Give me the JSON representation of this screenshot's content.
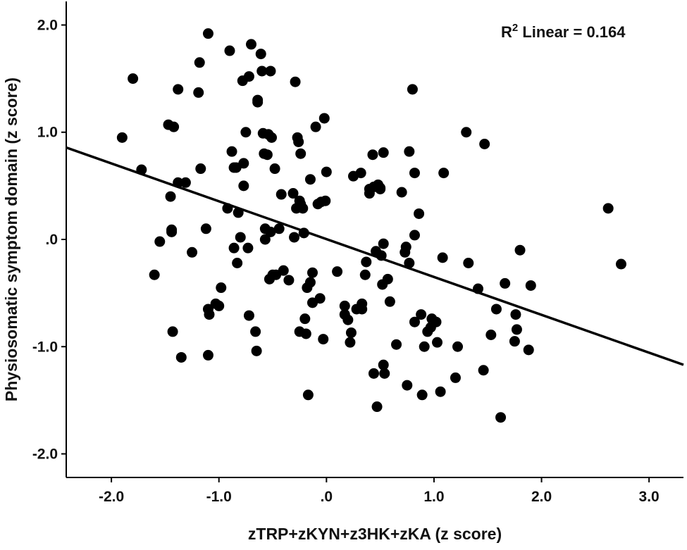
{
  "chart_data": {
    "type": "scatter",
    "xlabel": "zTRP+zKYN+z3HK+zKA (z score)",
    "ylabel": "Physiosomatic symptom domain (z score)",
    "xlim": [
      -2.42,
      3.32
    ],
    "ylim": [
      -2.22,
      2.22
    ],
    "x_ticks": [
      -2.0,
      -1.0,
      0.0,
      1.0,
      2.0,
      3.0
    ],
    "x_tick_labels": [
      "-2.0",
      "-1.0",
      ".0",
      "1.0",
      "2.0",
      "3.0"
    ],
    "y_ticks": [
      -2.0,
      -1.0,
      0.0,
      1.0,
      2.0
    ],
    "y_tick_labels": [
      "-2.0",
      "-1.0",
      ".0",
      "1.0",
      "2.0"
    ],
    "grid": false,
    "legend": "none",
    "annotation": {
      "base": "R",
      "superscript": "2",
      "text": " Linear = 0.164",
      "position": "top-right"
    },
    "fit_line": {
      "kind": "linear",
      "x": [
        -2.42,
        3.32
      ],
      "y": [
        0.857,
        -1.169
      ]
    },
    "colors": {
      "points": "#000000",
      "fit_line": "#000000",
      "axes": "#000000",
      "background": "#ffffff"
    },
    "points": [
      [
        -1.9,
        0.95
      ],
      [
        -1.8,
        1.5
      ],
      [
        -1.72,
        0.65
      ],
      [
        -1.6,
        -0.33
      ],
      [
        -1.55,
        -0.02
      ],
      [
        -1.47,
        1.07
      ],
      [
        -1.42,
        1.05
      ],
      [
        -1.45,
        0.4
      ],
      [
        -1.44,
        0.07
      ],
      [
        -1.44,
        0.09
      ],
      [
        -1.43,
        -0.86
      ],
      [
        -1.38,
        1.4
      ],
      [
        -1.38,
        0.53
      ],
      [
        -1.35,
        -1.1
      ],
      [
        -1.31,
        0.53
      ],
      [
        -1.19,
        1.37
      ],
      [
        -1.18,
        1.65
      ],
      [
        -1.17,
        0.66
      ],
      [
        -1.25,
        -0.12
      ],
      [
        -1.1,
        1.92
      ],
      [
        -1.12,
        0.1
      ],
      [
        -1.1,
        -0.65
      ],
      [
        -1.09,
        -0.7
      ],
      [
        -1.1,
        -1.08
      ],
      [
        -1.03,
        -0.6
      ],
      [
        -1.0,
        -0.62
      ],
      [
        -0.98,
        -0.45
      ],
      [
        -0.92,
        0.29
      ],
      [
        -0.9,
        1.76
      ],
      [
        -0.88,
        0.82
      ],
      [
        -0.86,
        0.67
      ],
      [
        -0.86,
        -0.08
      ],
      [
        -0.84,
        0.67
      ],
      [
        -0.83,
        -0.22
      ],
      [
        -0.82,
        0.25
      ],
      [
        -0.8,
        0.02
      ],
      [
        -0.78,
        1.48
      ],
      [
        -0.77,
        0.5
      ],
      [
        -0.77,
        0.71
      ],
      [
        -0.75,
        1.0
      ],
      [
        -0.73,
        -0.08
      ],
      [
        -0.72,
        -0.71
      ],
      [
        -0.72,
        1.52
      ],
      [
        -0.7,
        1.82
      ],
      [
        -0.66,
        -0.86
      ],
      [
        -0.65,
        -1.04
      ],
      [
        -0.64,
        1.3
      ],
      [
        -0.64,
        1.28
      ],
      [
        -0.61,
        1.73
      ],
      [
        -0.6,
        1.57
      ],
      [
        -0.59,
        0.99
      ],
      [
        -0.58,
        0.8
      ],
      [
        -0.57,
        0.1
      ],
      [
        -0.57,
        0.0
      ],
      [
        -0.55,
        0.79
      ],
      [
        -0.54,
        0.98
      ],
      [
        -0.53,
        -0.37
      ],
      [
        -0.52,
        1.57
      ],
      [
        -0.52,
        0.07
      ],
      [
        -0.51,
        0.95
      ],
      [
        -0.5,
        -0.33
      ],
      [
        -0.48,
        0.66
      ],
      [
        -0.47,
        -0.33
      ],
      [
        -0.44,
        0.1
      ],
      [
        -0.42,
        0.42
      ],
      [
        -0.4,
        -0.29
      ],
      [
        -0.35,
        -0.38
      ],
      [
        -0.31,
        0.43
      ],
      [
        -0.3,
        0.02
      ],
      [
        -0.29,
        1.47
      ],
      [
        -0.28,
        0.29
      ],
      [
        -0.27,
        0.95
      ],
      [
        -0.26,
        0.91
      ],
      [
        -0.25,
        0.36
      ],
      [
        -0.25,
        -0.86
      ],
      [
        -0.24,
        0.8
      ],
      [
        -0.24,
        0.33
      ],
      [
        -0.22,
        0.29
      ],
      [
        -0.21,
        0.06
      ],
      [
        -0.2,
        -0.74
      ],
      [
        -0.19,
        -0.88
      ],
      [
        -0.18,
        -0.45
      ],
      [
        -0.17,
        -1.45
      ],
      [
        -0.15,
        0.56
      ],
      [
        -0.15,
        -0.4
      ],
      [
        -0.13,
        -0.59
      ],
      [
        -0.13,
        -0.31
      ],
      [
        -0.1,
        1.05
      ],
      [
        -0.08,
        0.33
      ],
      [
        -0.06,
        -0.55
      ],
      [
        -0.05,
        0.35
      ],
      [
        -0.03,
        -0.93
      ],
      [
        -0.01,
        0.36
      ],
      [
        -0.02,
        1.13
      ],
      [
        0.0,
        0.63
      ],
      [
        0.1,
        -0.3
      ],
      [
        0.17,
        -0.62
      ],
      [
        0.17,
        -0.7
      ],
      [
        0.2,
        -0.75
      ],
      [
        0.22,
        -0.96
      ],
      [
        0.23,
        -0.87
      ],
      [
        0.25,
        0.59
      ],
      [
        0.28,
        -0.65
      ],
      [
        0.32,
        0.62
      ],
      [
        0.33,
        -0.65
      ],
      [
        0.33,
        -0.6
      ],
      [
        0.36,
        -0.33
      ],
      [
        0.37,
        -0.21
      ],
      [
        0.4,
        0.47
      ],
      [
        0.4,
        0.43
      ],
      [
        0.43,
        0.79
      ],
      [
        0.44,
        0.49
      ],
      [
        0.46,
        -0.11
      ],
      [
        0.44,
        -1.25
      ],
      [
        0.47,
        -1.56
      ],
      [
        0.48,
        0.51
      ],
      [
        0.5,
        0.48
      ],
      [
        0.5,
        0.47
      ],
      [
        0.51,
        -0.15
      ],
      [
        0.52,
        -0.42
      ],
      [
        0.53,
        -0.04
      ],
      [
        0.53,
        0.81
      ],
      [
        0.53,
        -1.17
      ],
      [
        0.54,
        -1.25
      ],
      [
        0.57,
        -0.37
      ],
      [
        0.59,
        -0.58
      ],
      [
        0.65,
        -0.98
      ],
      [
        0.7,
        0.44
      ],
      [
        0.73,
        -0.12
      ],
      [
        0.74,
        -0.07
      ],
      [
        0.75,
        -1.36
      ],
      [
        0.77,
        -0.22
      ],
      [
        0.77,
        0.82
      ],
      [
        0.8,
        1.4
      ],
      [
        0.82,
        0.62
      ],
      [
        0.82,
        0.04
      ],
      [
        0.82,
        -0.77
      ],
      [
        0.86,
        0.24
      ],
      [
        0.88,
        -0.7
      ],
      [
        0.89,
        -1.45
      ],
      [
        0.91,
        -1.0
      ],
      [
        0.94,
        -0.86
      ],
      [
        0.97,
        -0.82
      ],
      [
        0.98,
        -0.74
      ],
      [
        1.02,
        -0.77
      ],
      [
        1.03,
        -0.96
      ],
      [
        1.06,
        -1.42
      ],
      [
        1.08,
        -0.17
      ],
      [
        1.09,
        0.62
      ],
      [
        1.2,
        -1.29
      ],
      [
        1.22,
        -1.0
      ],
      [
        1.3,
        1.0
      ],
      [
        1.32,
        -0.22
      ],
      [
        1.41,
        -0.46
      ],
      [
        1.46,
        -1.22
      ],
      [
        1.47,
        0.89
      ],
      [
        1.53,
        -0.89
      ],
      [
        1.58,
        -0.65
      ],
      [
        1.62,
        -1.66
      ],
      [
        1.66,
        -0.41
      ],
      [
        1.75,
        -0.95
      ],
      [
        1.76,
        -0.7
      ],
      [
        1.77,
        -0.84
      ],
      [
        1.8,
        -0.1
      ],
      [
        1.88,
        -1.03
      ],
      [
        1.9,
        -0.43
      ],
      [
        2.62,
        0.29
      ],
      [
        2.74,
        -0.23
      ]
    ]
  }
}
